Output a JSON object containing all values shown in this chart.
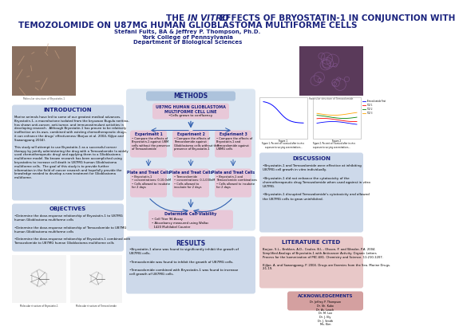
{
  "bg": "#ffffff",
  "title_color": "#1a237e",
  "section_header_color": "#1a237e",
  "section_bg_blue": "#cdd9ea",
  "section_bg_light_blue": "#dce6f1",
  "section_bg_methods": "#dce6f1",
  "section_bg_pink_flow": "#e8c8d8",
  "section_bg_results": "#cdd9ea",
  "section_bg_discussion": "#cdd9ea",
  "section_bg_litcited": "#e8c8c8",
  "section_bg_acknowledgements": "#d4a0a0",
  "methods_header_bg": "#adc3dc",
  "graph_bg": "#ffffff",
  "intro_text": "Marine animals have led to some of our greatest medical advances.\nBryostatin-1, a macrolactone isolated from the bryozoan Bugula neritina,\nhas shown anti-cancer, anti-tumor, and immunostimulant activities in\ndeveloping research.  Although Bryostatin-1 has proven to be relatively\nineffective on its own, combined with existing chemotherapeutic drugs,\nit can enhance the drugs' effectiveness (Barjuo et al. 2004, Kijlpe and\nSawangpang 2004).\n\nThis study will attempt to use Bryostatin-1 as a successful cancer\ntherapy by jointly administering the drug with a Temozolomide (a widely\nused chemotherapeutic drug) and applying them to a Glioblastoma\nmultiforme model. No known research has been accomplished using\nbryostatins to increase cell death in U87MG human Glioblastoma\nmultiforme cells.  The goal of this study is to provide further\ninformation in the field of cancer research and hopefully provide the\nknowledge needed to develop a new treatment for Glioblastoma\nmultiforme.",
  "objectives_text": "•Determine the dose-response relationship of Bryostatin-1 to U87MG\nhuman Glioblastoma multiforme cells\n\n•Determine the dose-response relationship of Temozolomide to U87MG\nhuman Glioblastoma multiforme cells\n\n•Determine the dose-response relationship of Bryostatin-1 combined with\nTemozolomide to U87MG human Glioblastoma multiforme cells",
  "results_text": "•Bryostatin-1 alone was found to significantly inhibit the growth of\nU87MG cells.\n\n•Temozolomide was found to inhibit the growth of U87MG cells.\n\n•Temozolomide combined with Bryostatin-1 was found to increase\ncell growth of U87MG cells.",
  "discussion_text": "•Bryostatin-1 and Temozolomide were effective at inhibiting\nU87MG cell growth in vitro individually.\n\n•Bryostatin-1 did not enhance the cytotoxicity of the\nchemotherapeutic drug Temozolomide when used against in vitro\nU87MG.\n\n•Bryostatin-1 disrupted Temozolomide's cytotoxicity and allowed\nthe U87MG cells to grow uninhibited.",
  "lit_cited_text": "Barjuo, S.L., Brekken, A.D., Coulee, B.L., Olsson, P. and Wender, P.A. 2004.\nSimplified Analogs of Bryostatin-1 with Anticancer Activity. Organic Letters\nProcess for the Isomerization of PKC-681. Chemistry and Science. 11:210-1207.\n\nKijlpe, A. and Sawangpang, P. 2004. Drugs are Enemies from the Sea. Marine Drugs.\n2:1-19.",
  "ack_text": "Dr. Jeffrey P. Thompson\nDr. Sh. Kubo\nDr. As. Leach\nDr. M. Lee\nDr. J. Ely\nDr. J. Smith\nMs. Kim",
  "left_img_color": "#8a7060",
  "right_img_color": "#5a3a5a",
  "mol1_color": "#e8e8e8",
  "mol2_color": "#e8e8e8"
}
